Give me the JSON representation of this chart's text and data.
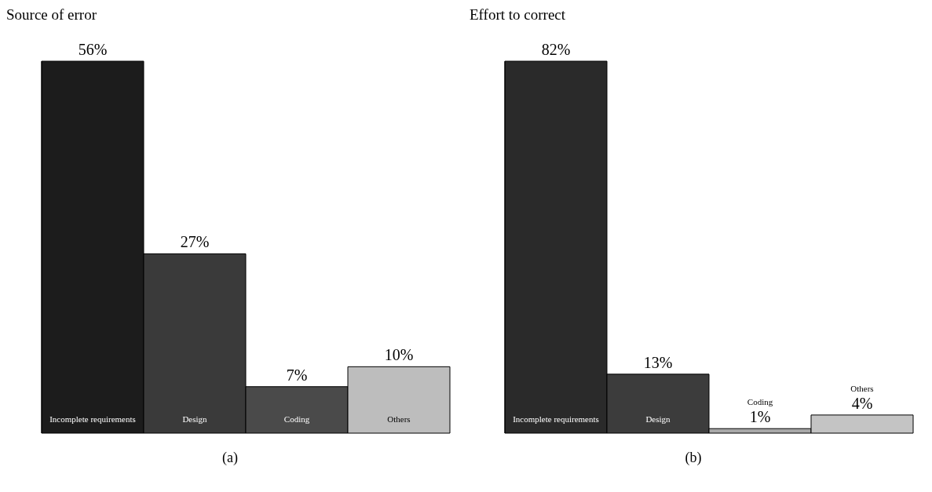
{
  "chart_data": [
    {
      "type": "bar",
      "ylabel": "Source of error",
      "categories": [
        "Incomplete requirements",
        "Design",
        "Coding",
        "Others"
      ],
      "values": [
        56,
        27,
        7,
        10
      ],
      "colors": [
        "#1c1c1c",
        "#3a3a3a",
        "#4a4a4a",
        "#bdbdbd"
      ],
      "data_labels": true,
      "value_labels": [
        "56%",
        "27%",
        "7%",
        "10%"
      ],
      "tick_labels": false,
      "annotations": [
        "(a)"
      ]
    },
    {
      "type": "bar",
      "ylabel": "Effort to correct",
      "categories": [
        "Incomplete requirements",
        "Design",
        "Coding",
        "Others"
      ],
      "values": [
        82,
        13,
        1,
        4
      ],
      "colors": [
        "#2a2a2a",
        "#3c3c3c",
        "#a8a8a8",
        "#c4c4c4"
      ],
      "data_labels": true,
      "value_labels": [
        "82%",
        "13%",
        "1%",
        "4%"
      ],
      "tick_labels": false,
      "annotations": [
        "(b)"
      ]
    }
  ]
}
